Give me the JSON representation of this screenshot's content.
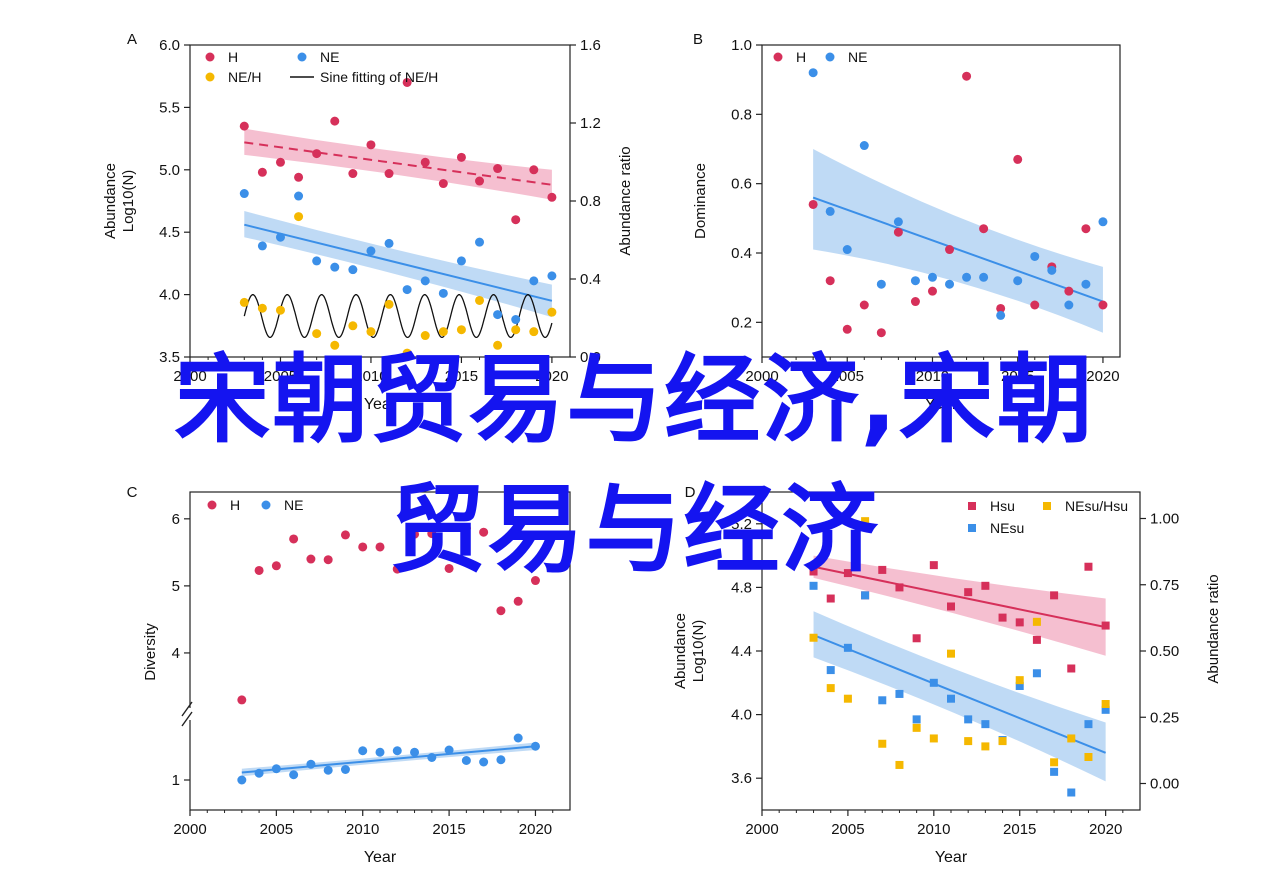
{
  "colors": {
    "H": "#d6305a",
    "NE": "#3b8fe8",
    "NEH": "#f5b800",
    "fit": "#111111",
    "H_band": "#f2a9c0",
    "NE_band": "#a9cdf2",
    "overlay": "#1414f0"
  },
  "overlay": {
    "line1": "宋朝贸易与经济,宋朝",
    "line2": "贸易与经济"
  },
  "chart_data": [
    {
      "panel": "A",
      "type": "scatter",
      "xlabel": "Year",
      "ylabel_line1": "Abundance",
      "ylabel_line2": "Log10(N)",
      "y2label": "Abundance ratio",
      "xlim": [
        2000,
        2021
      ],
      "ylim": [
        3.5,
        6.0
      ],
      "y2lim": [
        0.0,
        1.6
      ],
      "xticks": [
        "2000",
        "2005",
        "2010",
        "2015",
        "2020"
      ],
      "yticks": [
        "3.5",
        "4.0",
        "4.5",
        "5.0",
        "5.5",
        "6.0"
      ],
      "y2ticks": [
        "0.0",
        "0.4",
        "0.8",
        "1.2",
        "1.6"
      ],
      "legend": [
        "H",
        "NE",
        "NE/H",
        "Sine fitting of NE/H"
      ],
      "series": [
        {
          "name": "H",
          "x": [
            2003,
            2004,
            2005,
            2006,
            2007,
            2008,
            2009,
            2010,
            2011,
            2012,
            2013,
            2014,
            2015,
            2016,
            2017,
            2018,
            2019,
            2020
          ],
          "y": [
            5.35,
            4.98,
            5.06,
            4.94,
            5.13,
            5.39,
            4.97,
            5.2,
            4.97,
            5.7,
            5.06,
            4.89,
            5.1,
            4.91,
            5.01,
            4.6,
            5.0,
            4.78
          ],
          "trend": [
            5.22,
            4.88
          ],
          "band_lo": [
            5.12,
            4.76
          ],
          "band_hi": [
            5.33,
            5.0
          ]
        },
        {
          "name": "NE",
          "x": [
            2003,
            2004,
            2005,
            2006,
            2007,
            2008,
            2009,
            2010,
            2011,
            2012,
            2013,
            2014,
            2015,
            2016,
            2017,
            2018,
            2019,
            2020
          ],
          "y": [
            4.81,
            4.39,
            4.46,
            4.79,
            4.27,
            4.22,
            4.2,
            4.35,
            4.41,
            4.04,
            4.11,
            4.01,
            4.27,
            4.42,
            3.84,
            3.8,
            4.11,
            4.15
          ],
          "trend": [
            4.56,
            3.95
          ],
          "band_lo": [
            4.46,
            3.82
          ],
          "band_hi": [
            4.67,
            4.08
          ]
        },
        {
          "name": "NE/H",
          "axis": "right",
          "x": [
            2003,
            2004,
            2005,
            2006,
            2007,
            2008,
            2009,
            2010,
            2011,
            2012,
            2013,
            2014,
            2015,
            2016,
            2017,
            2018,
            2019,
            2020
          ],
          "y": [
            0.28,
            0.25,
            0.24,
            0.72,
            0.12,
            0.06,
            0.16,
            0.13,
            0.27,
            0.02,
            0.11,
            0.13,
            0.14,
            0.29,
            0.06,
            0.14,
            0.13,
            0.23
          ]
        }
      ],
      "fit": {
        "name": "Sine fitting of NE/H",
        "x_start": 2003,
        "x_end": 2020,
        "center": 0.21,
        "amplitude": 0.11,
        "period": 1.9
      }
    },
    {
      "panel": "B",
      "type": "scatter",
      "xlabel": "Year",
      "ylabel": "Dominance",
      "xlim": [
        2000,
        2021
      ],
      "ylim": [
        0.1,
        1.0
      ],
      "xticks": [
        "2000",
        "2005",
        "2010",
        "2015",
        "2020"
      ],
      "yticks": [
        "0.2",
        "0.4",
        "0.6",
        "0.8",
        "1.0"
      ],
      "legend": [
        "H",
        "NE"
      ],
      "series": [
        {
          "name": "H",
          "x": [
            2003,
            2004,
            2005,
            2006,
            2007,
            2008,
            2009,
            2010,
            2011,
            2012,
            2013,
            2014,
            2015,
            2016,
            2017,
            2018,
            2019,
            2020
          ],
          "y": [
            0.54,
            0.32,
            0.18,
            0.25,
            0.17,
            0.46,
            0.26,
            0.29,
            0.41,
            0.91,
            0.47,
            0.24,
            0.67,
            0.25,
            0.36,
            0.29,
            0.47,
            0.25
          ]
        },
        {
          "name": "NE",
          "x": [
            2003,
            2004,
            2005,
            2006,
            2007,
            2008,
            2009,
            2010,
            2011,
            2012,
            2013,
            2014,
            2015,
            2016,
            2017,
            2018,
            2019,
            2020
          ],
          "y": [
            0.92,
            0.52,
            0.41,
            0.71,
            0.31,
            0.49,
            0.32,
            0.33,
            0.31,
            0.33,
            0.33,
            0.22,
            0.32,
            0.39,
            0.35,
            0.25,
            0.31,
            0.49
          ],
          "trend": [
            0.56,
            0.26
          ],
          "band_lo": [
            0.41,
            0.17
          ],
          "band_hi": [
            0.7,
            0.36
          ]
        }
      ]
    },
    {
      "panel": "C",
      "type": "scatter",
      "xlabel": "Year",
      "ylabel": "Diversity",
      "xlim": [
        2000,
        2022
      ],
      "xticks": [
        "2000",
        "2005",
        "2010",
        "2015",
        "2020"
      ],
      "yticks": [
        "1",
        "4",
        "5",
        "6"
      ],
      "axis_break": true,
      "legend": [
        "H",
        "NE"
      ],
      "series": [
        {
          "name": "H",
          "x": [
            2003,
            2004,
            2005,
            2006,
            2007,
            2008,
            2009,
            2010,
            2011,
            2012,
            2013,
            2014,
            2015,
            2016,
            2017,
            2018,
            2019,
            2020
          ],
          "y": [
            3.3,
            5.23,
            5.3,
            5.7,
            5.4,
            5.39,
            5.76,
            5.58,
            5.58,
            5.25,
            5.77,
            5.78,
            5.26,
            5.86,
            5.8,
            4.63,
            4.77,
            5.08
          ]
        },
        {
          "name": "NE",
          "x": [
            2003,
            2004,
            2005,
            2006,
            2007,
            2008,
            2009,
            2010,
            2011,
            2012,
            2013,
            2014,
            2015,
            2016,
            2017,
            2018,
            2019,
            2020
          ],
          "y": [
            1.0,
            1.09,
            1.15,
            1.07,
            1.21,
            1.13,
            1.14,
            1.39,
            1.37,
            1.39,
            1.37,
            1.3,
            1.4,
            1.26,
            1.24,
            1.27,
            1.56,
            1.45
          ],
          "trend": [
            1.1,
            1.45
          ],
          "band_lo": [
            1.05,
            1.4
          ],
          "band_hi": [
            1.15,
            1.5
          ]
        }
      ]
    },
    {
      "panel": "D",
      "type": "scatter",
      "xlabel": "Year",
      "ylabel_line1": "Abundance",
      "ylabel_line2": "Log10(N)",
      "y2label": "Abundance ratio",
      "xlim": [
        2000,
        2022
      ],
      "ylim": [
        3.4,
        5.4
      ],
      "y2lim": [
        -0.1,
        1.1
      ],
      "xticks": [
        "2000",
        "2005",
        "2010",
        "2015",
        "2020"
      ],
      "yticks": [
        "3.6",
        "4.0",
        "4.4",
        "4.8",
        "5.2"
      ],
      "y2ticks": [
        "0.00",
        "0.25",
        "0.50",
        "0.75",
        "1.00"
      ],
      "legend": [
        "Hsu",
        "NEsu/Hsu",
        "NEsu"
      ],
      "series": [
        {
          "name": "Hsu",
          "x": [
            2003,
            2004,
            2005,
            2006,
            2007,
            2008,
            2009,
            2010,
            2011,
            2012,
            2013,
            2014,
            2015,
            2016,
            2017,
            2018,
            2019,
            2020
          ],
          "y": [
            4.9,
            4.73,
            4.89,
            4.75,
            4.91,
            4.8,
            4.48,
            4.94,
            4.68,
            4.77,
            4.81,
            4.61,
            4.58,
            4.47,
            4.75,
            4.29,
            4.93,
            4.56
          ],
          "trend": [
            4.93,
            4.55
          ],
          "band_lo": [
            4.86,
            4.37
          ],
          "band_hi": [
            5.0,
            4.73
          ]
        },
        {
          "name": "NEsu",
          "x": [
            2003,
            2004,
            2005,
            2006,
            2007,
            2008,
            2009,
            2010,
            2011,
            2012,
            2013,
            2014,
            2015,
            2016,
            2017,
            2018,
            2019,
            2020
          ],
          "y": [
            4.81,
            4.28,
            4.42,
            4.75,
            4.09,
            4.13,
            3.97,
            4.2,
            4.1,
            3.97,
            3.94,
            3.84,
            4.18,
            4.26,
            3.64,
            3.51,
            3.94,
            4.03
          ],
          "trend": [
            4.5,
            3.76
          ],
          "band_lo": [
            4.36,
            3.58
          ],
          "band_hi": [
            4.65,
            3.95
          ]
        },
        {
          "name": "NEsu/Hsu",
          "axis": "right",
          "x": [
            2003,
            2004,
            2005,
            2006,
            2007,
            2008,
            2009,
            2010,
            2011,
            2012,
            2013,
            2014,
            2015,
            2016,
            2017,
            2018,
            2019,
            2020
          ],
          "y": [
            0.55,
            0.36,
            0.32,
            0.99,
            0.15,
            0.07,
            0.21,
            0.17,
            0.49,
            0.16,
            0.14,
            0.16,
            0.39,
            0.61,
            0.08,
            0.17,
            0.1,
            0.3
          ]
        }
      ]
    }
  ]
}
